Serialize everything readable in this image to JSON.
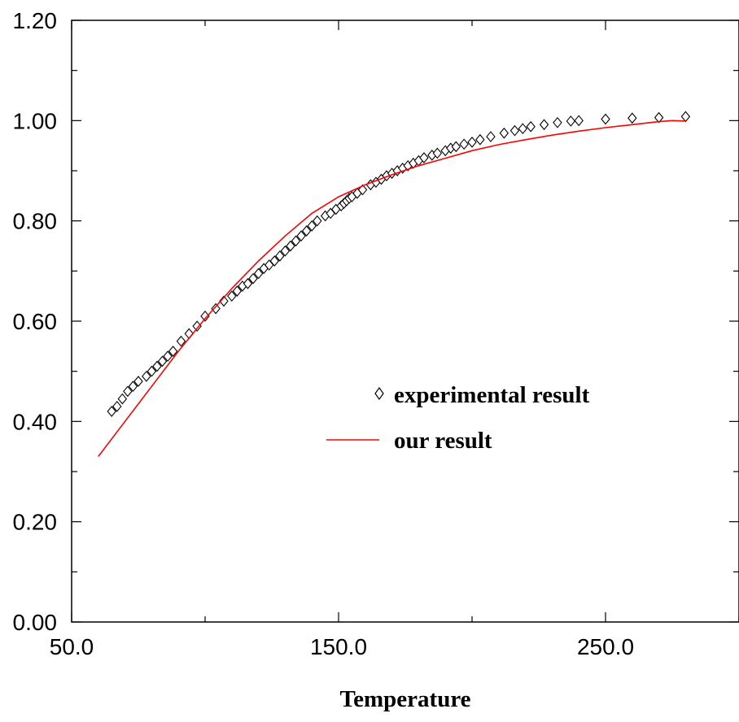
{
  "chart_data": {
    "type": "scatter",
    "title": "",
    "xlabel": "Temperature",
    "ylabel": "",
    "xlim": [
      50,
      300
    ],
    "ylim": [
      0,
      1.2
    ],
    "x_ticks": [
      50,
      150,
      250
    ],
    "x_tick_labels": [
      "50.0",
      "150.0",
      "250.0"
    ],
    "y_ticks": [
      0,
      0.2,
      0.4,
      0.6,
      0.8,
      1.0,
      1.2
    ],
    "y_tick_labels": [
      "0.00",
      "0.20",
      "0.40",
      "0.60",
      "0.80",
      "1.00",
      "1.20"
    ],
    "grid": false,
    "legend_position": "center-right",
    "series": [
      {
        "name": "experimental result",
        "kind": "scatter",
        "marker": "diamond-open",
        "color": "#000000",
        "x": [
          65,
          67,
          69,
          71,
          73,
          75,
          78,
          80,
          82,
          84,
          86,
          88,
          91,
          94,
          97,
          100,
          104,
          107,
          110,
          112,
          114,
          116,
          118,
          120,
          122,
          124,
          126,
          128,
          130,
          132,
          134,
          136,
          138,
          140,
          142,
          145,
          147,
          149,
          151,
          152,
          153,
          154,
          155,
          157,
          159,
          162,
          164,
          166,
          168,
          170,
          172,
          174,
          176,
          178,
          180,
          182,
          185,
          187,
          190,
          192,
          194,
          197,
          200,
          203,
          207,
          212,
          216,
          219,
          222,
          227,
          232,
          237,
          240,
          250,
          260,
          270,
          280
        ],
        "y": [
          0.42,
          0.43,
          0.445,
          0.46,
          0.47,
          0.48,
          0.49,
          0.5,
          0.51,
          0.52,
          0.53,
          0.54,
          0.56,
          0.575,
          0.59,
          0.61,
          0.625,
          0.64,
          0.65,
          0.66,
          0.67,
          0.675,
          0.685,
          0.695,
          0.705,
          0.712,
          0.72,
          0.73,
          0.74,
          0.75,
          0.76,
          0.77,
          0.78,
          0.79,
          0.8,
          0.81,
          0.815,
          0.823,
          0.83,
          0.835,
          0.84,
          0.845,
          0.848,
          0.855,
          0.862,
          0.872,
          0.877,
          0.883,
          0.89,
          0.895,
          0.9,
          0.905,
          0.91,
          0.915,
          0.92,
          0.926,
          0.931,
          0.935,
          0.94,
          0.945,
          0.948,
          0.953,
          0.957,
          0.962,
          0.968,
          0.975,
          0.98,
          0.984,
          0.988,
          0.992,
          0.996,
          0.999,
          1.0,
          1.003,
          1.005,
          1.006,
          1.008
        ]
      },
      {
        "name": "our result",
        "kind": "line",
        "color": "#ff0000",
        "x": [
          60,
          70,
          80,
          90,
          100,
          110,
          120,
          130,
          140,
          150,
          160,
          170,
          180,
          190,
          200,
          210,
          220,
          230,
          240,
          250,
          260,
          270,
          275,
          280
        ],
        "y": [
          0.33,
          0.4,
          0.47,
          0.54,
          0.605,
          0.665,
          0.72,
          0.77,
          0.815,
          0.848,
          0.872,
          0.892,
          0.91,
          0.925,
          0.94,
          0.952,
          0.962,
          0.971,
          0.979,
          0.986,
          0.992,
          0.998,
          1.0,
          0.999
        ]
      }
    ]
  }
}
